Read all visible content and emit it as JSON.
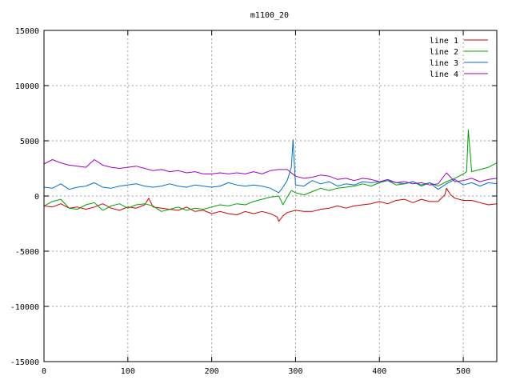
{
  "chart_data": {
    "type": "line",
    "title": "m1100_20",
    "xlabel": "",
    "ylabel": "",
    "xlim": [
      0,
      540
    ],
    "ylim": [
      -15000,
      15000
    ],
    "xticks": [
      0,
      100,
      200,
      300,
      400,
      500
    ],
    "yticks": [
      -15000,
      -10000,
      -5000,
      0,
      5000,
      10000,
      15000
    ],
    "grid": true,
    "legend_position": "top-right",
    "series": [
      {
        "name": "line 1",
        "color": "#d00000",
        "x": [
          0,
          10,
          20,
          30,
          40,
          50,
          60,
          70,
          80,
          90,
          100,
          110,
          120,
          125,
          130,
          140,
          150,
          160,
          170,
          180,
          190,
          200,
          210,
          220,
          230,
          240,
          250,
          260,
          270,
          278,
          280,
          285,
          290,
          300,
          310,
          320,
          330,
          340,
          350,
          360,
          370,
          380,
          390,
          400,
          410,
          420,
          430,
          440,
          450,
          460,
          470,
          478,
          480,
          485,
          490,
          500,
          510,
          520,
          530,
          540
        ],
        "y": [
          -900,
          -1000,
          -700,
          -1100,
          -1000,
          -1200,
          -1000,
          -700,
          -1100,
          -1300,
          -1000,
          -1100,
          -800,
          -200,
          -1000,
          -1100,
          -1200,
          -1300,
          -1000,
          -1400,
          -1300,
          -1600,
          -1400,
          -1600,
          -1700,
          -1400,
          -1600,
          -1400,
          -1600,
          -1900,
          -2300,
          -1800,
          -1500,
          -1300,
          -1400,
          -1400,
          -1200,
          -1100,
          -900,
          -1100,
          -900,
          -800,
          -700,
          -500,
          -700,
          -400,
          -300,
          -600,
          -300,
          -500,
          -500,
          100,
          700,
          100,
          -200,
          -400,
          -400,
          -600,
          -800,
          -700
        ]
      },
      {
        "name": "line 2",
        "color": "#00a000",
        "x": [
          0,
          10,
          20,
          30,
          40,
          50,
          60,
          70,
          80,
          90,
          100,
          110,
          120,
          130,
          140,
          150,
          160,
          170,
          180,
          190,
          200,
          210,
          220,
          230,
          240,
          250,
          260,
          270,
          280,
          285,
          290,
          295,
          300,
          310,
          320,
          330,
          340,
          350,
          360,
          370,
          380,
          390,
          400,
          410,
          420,
          430,
          440,
          450,
          460,
          470,
          480,
          490,
          500,
          504,
          506,
          510,
          520,
          530,
          540
        ],
        "y": [
          -900,
          -500,
          -300,
          -1100,
          -1200,
          -800,
          -600,
          -1300,
          -900,
          -700,
          -1100,
          -800,
          -700,
          -900,
          -1400,
          -1200,
          -1000,
          -1300,
          -1100,
          -1200,
          -1000,
          -800,
          -900,
          -700,
          -800,
          -500,
          -300,
          -100,
          0,
          -800,
          -100,
          500,
          300,
          100,
          400,
          700,
          500,
          700,
          800,
          900,
          1100,
          900,
          1200,
          1400,
          1000,
          1100,
          1300,
          900,
          1200,
          900,
          1300,
          1600,
          2000,
          2200,
          6000,
          2200,
          2400,
          2600,
          3000
        ]
      },
      {
        "name": "line 3",
        "color": "#0070d0",
        "x": [
          0,
          10,
          20,
          30,
          40,
          50,
          60,
          70,
          80,
          90,
          100,
          110,
          120,
          130,
          140,
          150,
          160,
          170,
          180,
          190,
          200,
          210,
          220,
          230,
          240,
          250,
          260,
          270,
          280,
          285,
          290,
          295,
          297,
          300,
          310,
          320,
          330,
          340,
          350,
          360,
          370,
          380,
          390,
          400,
          410,
          420,
          430,
          440,
          450,
          460,
          470,
          480,
          490,
          500,
          510,
          520,
          530,
          540
        ],
        "y": [
          800,
          700,
          1100,
          600,
          800,
          900,
          1200,
          800,
          700,
          900,
          1000,
          1100,
          900,
          800,
          900,
          1100,
          900,
          800,
          1000,
          900,
          800,
          900,
          1200,
          1000,
          900,
          1000,
          900,
          700,
          300,
          800,
          1400,
          2600,
          5100,
          1000,
          900,
          1400,
          1100,
          1300,
          900,
          1100,
          1000,
          1300,
          1200,
          1300,
          1400,
          1200,
          1100,
          1300,
          1000,
          1200,
          600,
          1100,
          1500,
          1000,
          1200,
          900,
          1200,
          1100
        ]
      },
      {
        "name": "line 4",
        "color": "#a000c0",
        "x": [
          0,
          10,
          20,
          30,
          40,
          50,
          60,
          70,
          80,
          90,
          100,
          110,
          120,
          130,
          140,
          150,
          160,
          170,
          180,
          190,
          200,
          210,
          220,
          230,
          240,
          250,
          260,
          270,
          280,
          290,
          300,
          310,
          320,
          330,
          340,
          350,
          360,
          370,
          380,
          390,
          400,
          410,
          420,
          430,
          440,
          450,
          460,
          470,
          480,
          490,
          500,
          510,
          520,
          530,
          540
        ],
        "y": [
          2900,
          3300,
          3000,
          2800,
          2700,
          2600,
          3300,
          2800,
          2600,
          2500,
          2600,
          2700,
          2500,
          2300,
          2400,
          2200,
          2300,
          2100,
          2200,
          2000,
          2000,
          2100,
          2000,
          2100,
          2000,
          2200,
          2000,
          2300,
          2400,
          2400,
          1800,
          1600,
          1700,
          1900,
          1800,
          1500,
          1600,
          1400,
          1600,
          1500,
          1300,
          1500,
          1200,
          1300,
          1100,
          1200,
          1000,
          1100,
          2100,
          1300,
          1400,
          1600,
          1300,
          1500,
          1600
        ]
      }
    ]
  }
}
